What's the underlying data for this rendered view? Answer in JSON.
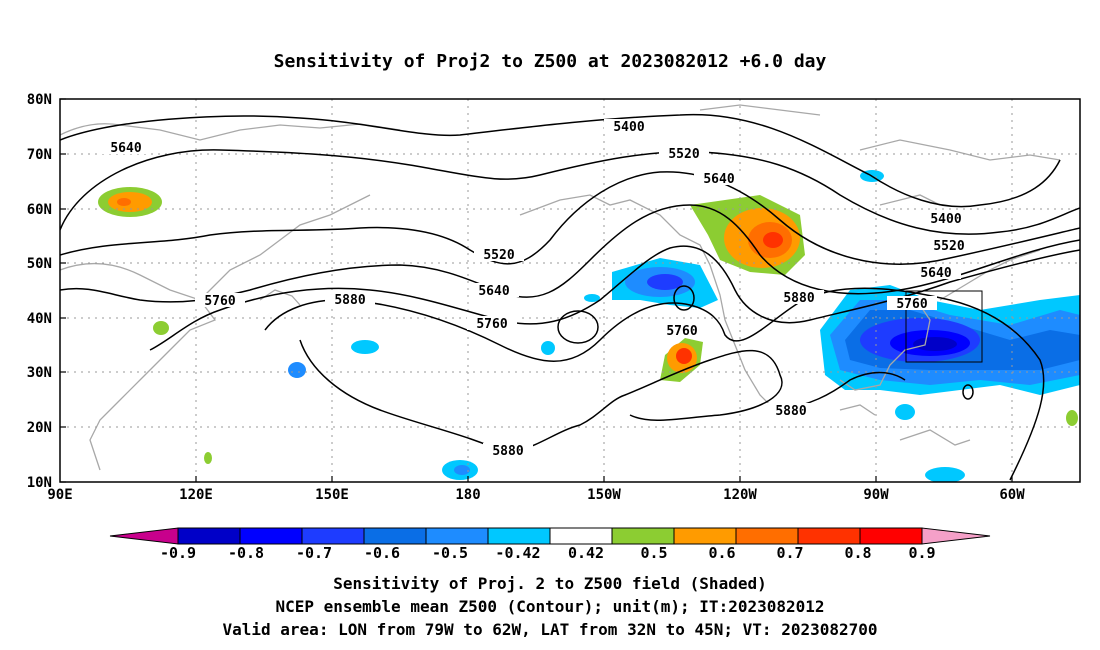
{
  "title": "Sensitivity of Proj2 to Z500 at 2023082012 +6.0 day",
  "lat_labels": [
    "80N",
    "70N",
    "60N",
    "50N",
    "40N",
    "30N",
    "20N",
    "10N"
  ],
  "lon_labels": [
    "90E",
    "120E",
    "150E",
    "180",
    "150W",
    "120W",
    "90W",
    "60W"
  ],
  "contour_labels": [
    "5400",
    "5520",
    "5640",
    "5400",
    "5520",
    "5640",
    "5520",
    "5640",
    "5760",
    "5880",
    "5640",
    "5760",
    "5760",
    "5880",
    "5880",
    "5880"
  ],
  "colorbar": {
    "labels": [
      "-0.9",
      "-0.8",
      "-0.7",
      "-0.6",
      "-0.5",
      "-0.42",
      "0.42",
      "0.5",
      "0.6",
      "0.7",
      "0.8",
      "0.9"
    ],
    "colors": [
      "#0000c8",
      "#0000ff",
      "#1e3cff",
      "#0a6ee6",
      "#1e8cff",
      "#00c8ff",
      "#ffffff",
      "#8ccd32",
      "#ff9b00",
      "#ff6e00",
      "#ff3200",
      "#ff0000"
    ],
    "low_color": "#c8008c",
    "high_color": "#f5a0c8"
  },
  "captions": {
    "line1": "Sensitivity of Proj. 2 to Z500 field (Shaded)",
    "line2": "NCEP ensemble mean Z500 (Contour); unit(m); IT:2023082012",
    "line3": "Valid area: LON from 79W to 62W, LAT from 32N to 45N; VT: 2023082700"
  }
}
